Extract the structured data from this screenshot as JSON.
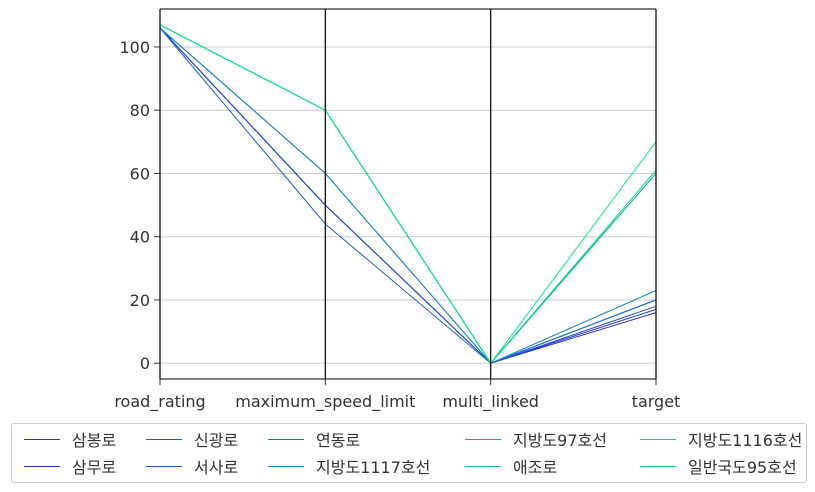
{
  "chart_data": {
    "type": "parallel_coordinates",
    "axes": [
      "road_rating",
      "maximum_speed_limit",
      "multi_linked",
      "target"
    ],
    "ylim": [
      -5,
      112
    ],
    "yticks": [
      0,
      20,
      40,
      60,
      80,
      100
    ],
    "grid": true,
    "legend_position": "bottom",
    "series": [
      {
        "name": "삼봉로",
        "color": "#2a2ed6",
        "values": [
          106,
          50,
          0,
          16
        ]
      },
      {
        "name": "삼무로",
        "color": "#2638d4",
        "values": [
          106,
          50,
          0,
          17
        ]
      },
      {
        "name": "신광로",
        "color": "#2150d0",
        "values": [
          106,
          50,
          0,
          18
        ]
      },
      {
        "name": "서사로",
        "color": "#1e5fcf",
        "values": [
          106,
          44,
          0,
          20
        ]
      },
      {
        "name": "연동로",
        "color": "#1a70cc",
        "values": [
          106,
          60,
          0,
          20
        ]
      },
      {
        "name": "지방도1117호선",
        "color": "#1682c6",
        "values": [
          106,
          60,
          0,
          23
        ]
      },
      {
        "name": "지방도97호선",
        "color": "#11a0a8",
        "values": [
          107,
          80,
          0,
          60
        ]
      },
      {
        "name": "애조로",
        "color": "#0ebc98",
        "values": [
          107,
          80,
          0,
          60
        ]
      },
      {
        "name": "지방도1116호선",
        "color": "#0bd08a",
        "values": [
          107,
          80,
          0,
          61
        ]
      },
      {
        "name": "일반국도95호선",
        "color": "#08e880",
        "values": [
          107,
          80,
          0,
          70
        ]
      }
    ]
  }
}
